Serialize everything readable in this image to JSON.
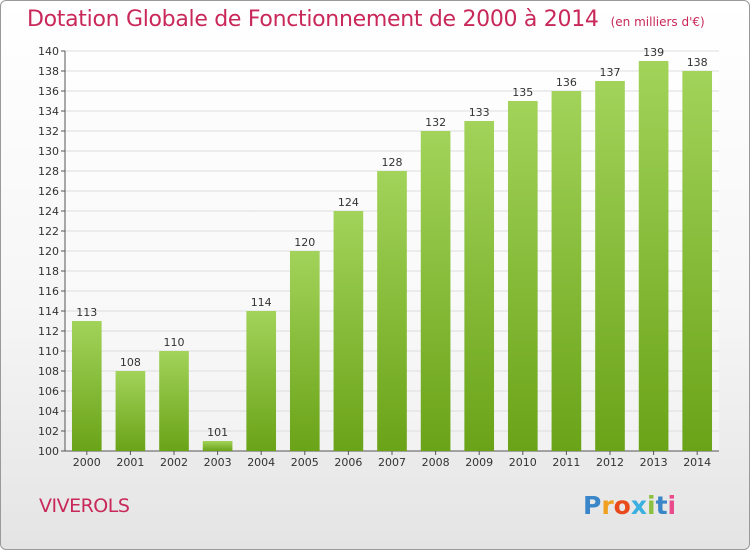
{
  "title": "Dotation Globale de Fonctionnement de 2000 à 2014",
  "unit": "(en milliers d'€)",
  "commune": "VIVEROLS",
  "logo": {
    "letters": [
      "P",
      "r",
      "o",
      "x",
      "i",
      "t",
      "i"
    ]
  },
  "colors": {
    "bar_light": "#a2d35a",
    "bar_dark": "#6aa318",
    "title": "#c8285a",
    "axis": "#555555",
    "grid": "#dddddd"
  },
  "chart_data": {
    "type": "bar",
    "categories": [
      "2000",
      "2001",
      "2002",
      "2003",
      "2004",
      "2005",
      "2006",
      "2007",
      "2008",
      "2009",
      "2010",
      "2011",
      "2012",
      "2013",
      "2014"
    ],
    "values": [
      113,
      108,
      110,
      101,
      114,
      120,
      124,
      128,
      132,
      133,
      135,
      136,
      137,
      139,
      138
    ],
    "ylim": [
      100,
      140
    ],
    "ytick_step": 2,
    "grid": true
  }
}
